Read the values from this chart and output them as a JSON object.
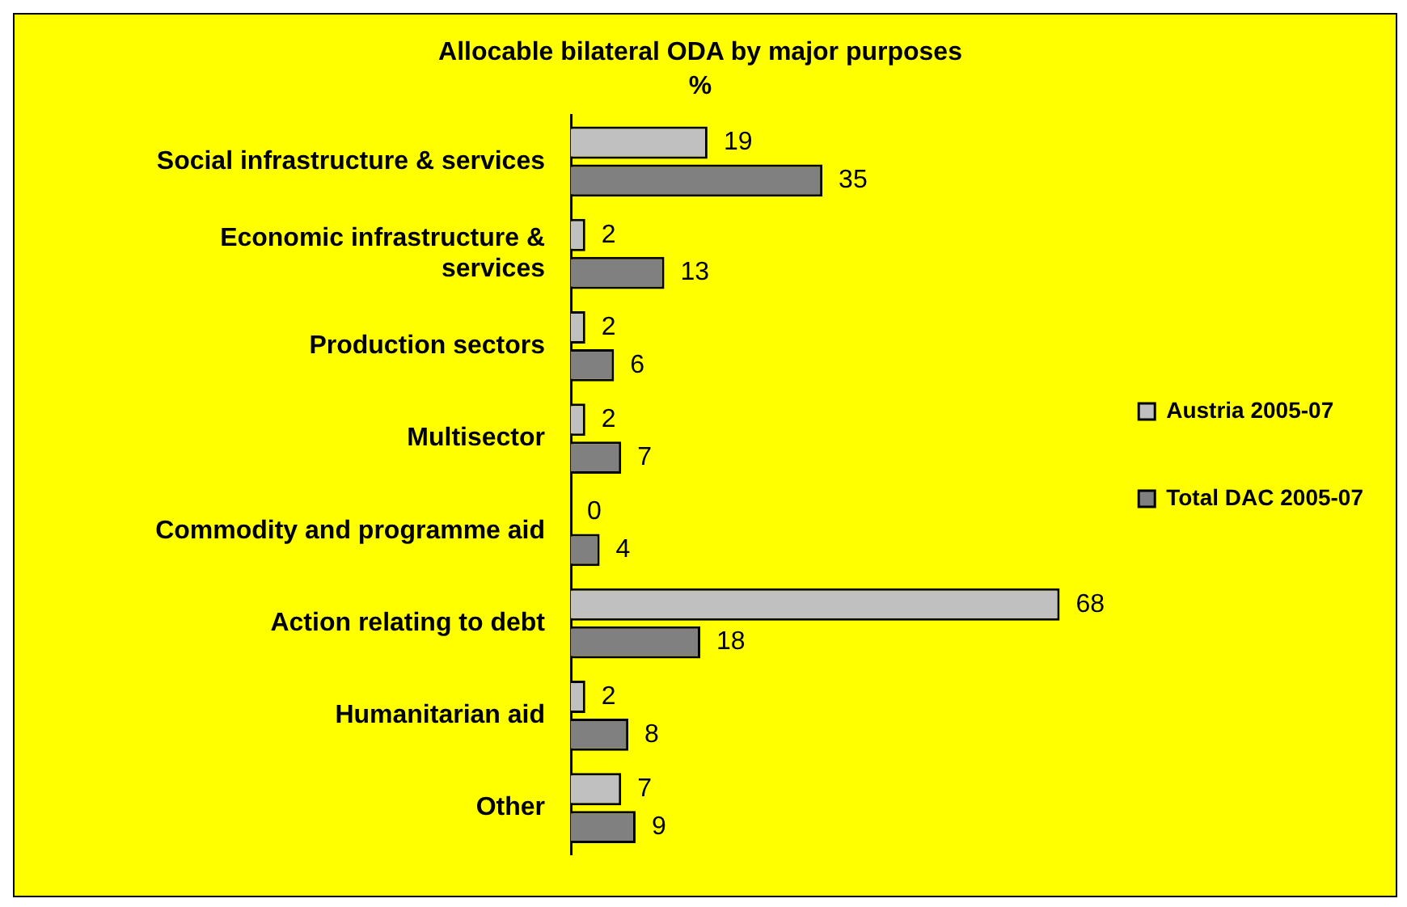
{
  "chart_data": {
    "type": "bar",
    "orientation": "horizontal",
    "title": "Allocable bilateral ODA by major purposes",
    "subtitle": "%",
    "categories": [
      "Social infrastructure & services",
      "Economic infrastructure & services",
      "Production sectors",
      "Multisector",
      "Commodity and programme aid",
      "Action relating to debt",
      "Humanitarian aid",
      "Other"
    ],
    "series": [
      {
        "name": "Austria 2005-07",
        "color": "#c0c0c0",
        "values": [
          19,
          2,
          2,
          2,
          0,
          68,
          2,
          7
        ]
      },
      {
        "name": "Total DAC 2005-07",
        "color": "#808080",
        "values": [
          35,
          13,
          6,
          7,
          4,
          18,
          8,
          9
        ]
      }
    ],
    "data_labels": true,
    "legend": "right",
    "grid": false
  }
}
